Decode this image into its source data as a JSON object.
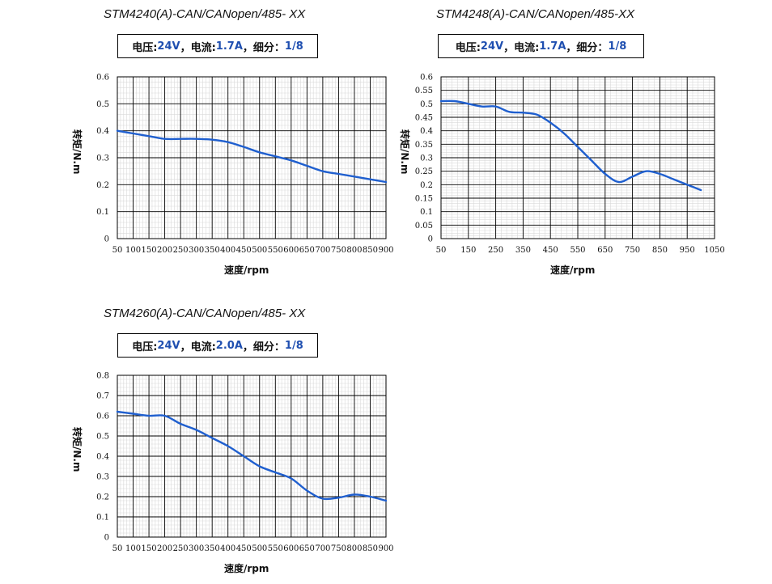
{
  "charts": [
    {
      "title": "STM4240(A)-CAN/CANopen/485- XX",
      "spec": {
        "voltage_label": "电压:",
        "voltage_value": "24V",
        "sep1": "，",
        "current_label": "电流:",
        "current_value": "1.7A",
        "sep2": "，",
        "microstep_label": "细分：",
        "microstep_value": "1/8"
      }
    },
    {
      "title": "STM4248(A)-CAN/CANopen/485-XX",
      "spec": {
        "voltage_label": "电压:",
        "voltage_value": "24V",
        "sep1": "，",
        "current_label": "电流:",
        "current_value": "1.7A",
        "sep2": "，",
        "microstep_label": "细分：",
        "microstep_value": "1/8"
      }
    },
    {
      "title": "STM4260(A)-CAN/CANopen/485- XX",
      "spec": {
        "voltage_label": "电压:",
        "voltage_value": "24V",
        "sep1": "，",
        "current_label": "电流:",
        "current_value": "2.0A",
        "sep2": "，",
        "microstep_label": "细分：",
        "microstep_value": "1/8"
      }
    }
  ],
  "colors": {
    "line": "#1f5fcf",
    "accent_text": "#1f4fb0",
    "grid_major": "#000000",
    "grid_minor": "#d9d9d9"
  },
  "chart_data": [
    {
      "type": "line",
      "title": "STM4240(A)-CAN/CANopen/485- XX",
      "xlabel": "速度/rpm",
      "ylabel": "转矩/N.m",
      "xlim": [
        50,
        900
      ],
      "ylim": [
        0,
        0.6
      ],
      "x_ticks": [
        50,
        100,
        150,
        200,
        250,
        300,
        350,
        400,
        450,
        500,
        550,
        600,
        650,
        700,
        750,
        800,
        850,
        900
      ],
      "y_ticks": [
        0,
        0.1,
        0.2,
        0.3,
        0.4,
        0.5,
        0.6
      ],
      "y_tick_labels": [
        "0",
        "0.1",
        "0.2",
        "0.3",
        "0.4",
        "0.5",
        "0.6"
      ],
      "grid": true,
      "series": [
        {
          "x": [
            50,
            100,
            150,
            200,
            250,
            300,
            350,
            400,
            450,
            500,
            550,
            600,
            650,
            700,
            750,
            800,
            850,
            900
          ],
          "values": [
            0.4,
            0.39,
            0.38,
            0.37,
            0.37,
            0.37,
            0.367,
            0.358,
            0.34,
            0.32,
            0.305,
            0.29,
            0.27,
            0.25,
            0.24,
            0.23,
            0.22,
            0.21
          ]
        }
      ]
    },
    {
      "type": "line",
      "title": "STM4248(A)-CAN/CANopen/485-XX",
      "xlabel": "速度/rpm",
      "ylabel": "转矩/N.m",
      "xlim": [
        50,
        1050
      ],
      "ylim": [
        0,
        0.6
      ],
      "x_ticks": [
        50,
        150,
        250,
        350,
        450,
        550,
        650,
        750,
        850,
        950,
        1050
      ],
      "y_ticks": [
        0,
        0.05,
        0.1,
        0.15,
        0.2,
        0.25,
        0.3,
        0.35,
        0.4,
        0.45,
        0.5,
        0.55,
        0.6
      ],
      "y_tick_labels": [
        "0",
        "0.05",
        "0.1",
        "0.15",
        "0.2",
        "0.25",
        "0.3",
        "0.35",
        "0.4",
        "0.45",
        "0.5",
        "0.55",
        "0.6"
      ],
      "grid": true,
      "series": [
        {
          "x": [
            50,
            100,
            150,
            200,
            250,
            300,
            350,
            400,
            450,
            500,
            550,
            600,
            650,
            700,
            750,
            800,
            850,
            900,
            950,
            1000
          ],
          "values": [
            0.51,
            0.51,
            0.5,
            0.49,
            0.49,
            0.47,
            0.467,
            0.46,
            0.43,
            0.39,
            0.34,
            0.29,
            0.24,
            0.21,
            0.23,
            0.25,
            0.24,
            0.22,
            0.2,
            0.18
          ]
        }
      ]
    },
    {
      "type": "line",
      "title": "STM4260(A)-CAN/CANopen/485- XX",
      "xlabel": "速度/rpm",
      "ylabel": "转矩/N.m",
      "xlim": [
        50,
        900
      ],
      "ylim": [
        0,
        0.8
      ],
      "x_ticks": [
        50,
        100,
        150,
        200,
        250,
        300,
        350,
        400,
        450,
        500,
        550,
        600,
        650,
        700,
        750,
        800,
        850,
        900
      ],
      "y_ticks": [
        0,
        0.1,
        0.2,
        0.3,
        0.4,
        0.5,
        0.6,
        0.7,
        0.8
      ],
      "y_tick_labels": [
        "0",
        "0.1",
        "0.2",
        "0.3",
        "0.4",
        "0.5",
        "0.6",
        "0.7",
        "0.8"
      ],
      "grid": true,
      "series": [
        {
          "x": [
            50,
            100,
            150,
            200,
            250,
            300,
            350,
            400,
            450,
            500,
            550,
            600,
            650,
            700,
            750,
            800,
            850,
            900
          ],
          "values": [
            0.62,
            0.61,
            0.6,
            0.6,
            0.56,
            0.53,
            0.49,
            0.45,
            0.4,
            0.35,
            0.32,
            0.29,
            0.23,
            0.19,
            0.195,
            0.21,
            0.2,
            0.18
          ]
        }
      ]
    }
  ]
}
